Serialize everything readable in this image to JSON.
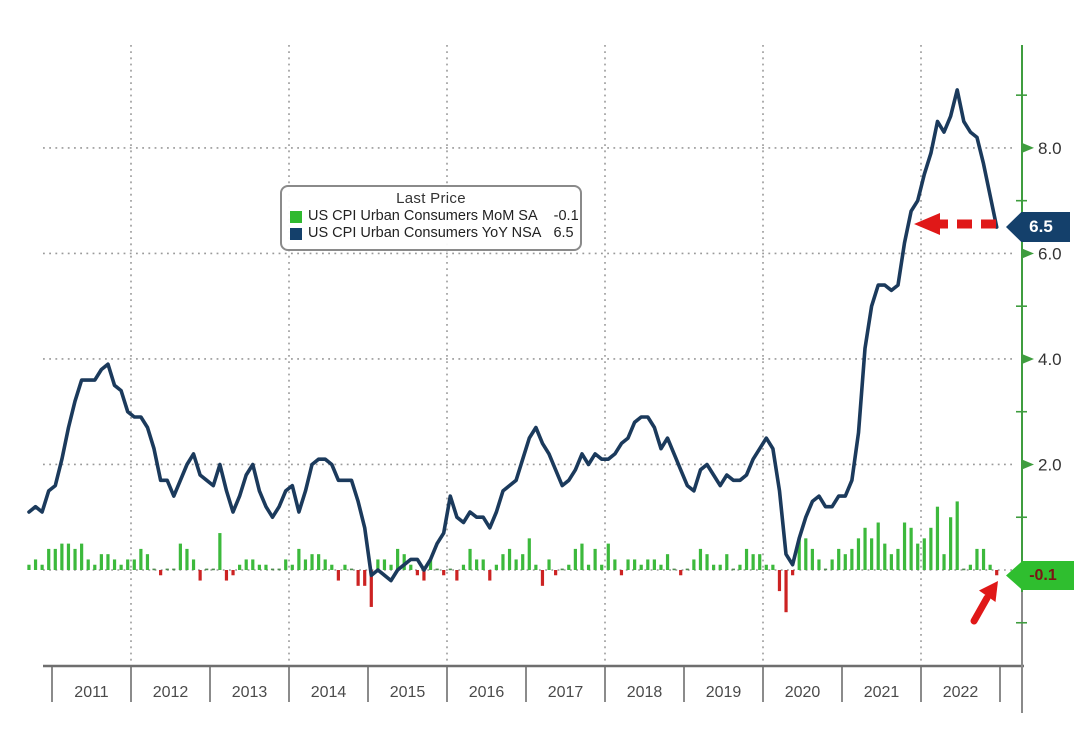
{
  "page": {
    "background": "#ffffff"
  },
  "chart_data": {
    "type": "line+bar",
    "description": "Bloomberg-style last price chart of US CPI: monthly MoM bars and YoY line",
    "frequency": "monthly",
    "x_start": "2010-09",
    "x_end": "2022-12",
    "x_axis": {
      "year_labels": [
        "2011",
        "2012",
        "2013",
        "2014",
        "2015",
        "2016",
        "2017",
        "2018",
        "2019",
        "2020",
        "2021",
        "2022"
      ],
      "label_color": "#4a4a4a",
      "axis_color": "#6e6e6e"
    },
    "y_axis": {
      "side": "right",
      "major_ticks": [
        {
          "label": "8.0",
          "value": 8.0
        },
        {
          "label": "6.0",
          "value": 6.0
        },
        {
          "label": "4.0",
          "value": 4.0
        },
        {
          "label": "2.0",
          "value": 2.0
        }
      ],
      "minor_tick_values": [
        9,
        7,
        5,
        3,
        1,
        -1
      ],
      "ylim": [
        -1.8,
        9.95
      ],
      "axis_color": "#3f9d3f",
      "axis_lower_color": "#8a8a8a",
      "label_color": "#333333"
    },
    "grid": {
      "dotted": true,
      "color": "#9a9a9a",
      "h_line_values": [
        8,
        6,
        4,
        2,
        0
      ],
      "v_line_years": [
        2012,
        2014,
        2016,
        2018,
        2020,
        2022
      ]
    },
    "legend": {
      "title": "Last Price",
      "entries": [
        {
          "label": "US CPI Urban Consumers MoM SA",
          "value": "-0.1",
          "swatch_color": "#2fb92f"
        },
        {
          "label": "US CPI Urban Consumers YoY NSA",
          "value": "6.5",
          "swatch_color": "#14406b"
        }
      ]
    },
    "series": [
      {
        "name": "US CPI Urban Consumers MoM SA",
        "type": "bar",
        "positive_color": "#3cb93c",
        "negative_color": "#cc2222",
        "zero_color": "#4d8c4d",
        "last": -0.1,
        "values": [
          0.1,
          0.2,
          0.1,
          0.4,
          0.4,
          0.5,
          0.5,
          0.4,
          0.5,
          0.2,
          0.1,
          0.3,
          0.3,
          0.2,
          0.1,
          0.2,
          0.2,
          0.4,
          0.3,
          0.0,
          -0.1,
          0.0,
          0.0,
          0.5,
          0.4,
          0.2,
          -0.2,
          0.0,
          0.0,
          0.7,
          -0.2,
          -0.1,
          0.1,
          0.2,
          0.2,
          0.1,
          0.1,
          0.0,
          0.0,
          0.2,
          0.1,
          0.4,
          0.2,
          0.3,
          0.3,
          0.2,
          0.1,
          -0.2,
          0.1,
          0.0,
          -0.3,
          -0.3,
          -0.7,
          0.2,
          0.2,
          0.1,
          0.4,
          0.3,
          0.1,
          -0.1,
          -0.2,
          0.2,
          0.0,
          -0.1,
          0.0,
          -0.2,
          0.1,
          0.4,
          0.2,
          0.2,
          -0.2,
          0.1,
          0.3,
          0.4,
          0.2,
          0.3,
          0.6,
          0.1,
          -0.3,
          0.2,
          -0.1,
          0.0,
          0.1,
          0.4,
          0.5,
          0.1,
          0.4,
          0.1,
          0.5,
          0.2,
          -0.1,
          0.2,
          0.2,
          0.1,
          0.2,
          0.2,
          0.1,
          0.3,
          0.0,
          -0.1,
          0.0,
          0.2,
          0.4,
          0.3,
          0.1,
          0.1,
          0.3,
          0.0,
          0.1,
          0.4,
          0.3,
          0.3,
          0.1,
          0.1,
          -0.4,
          -0.8,
          -0.1,
          0.6,
          0.6,
          0.4,
          0.2,
          0.0,
          0.2,
          0.4,
          0.3,
          0.4,
          0.6,
          0.8,
          0.6,
          0.9,
          0.5,
          0.3,
          0.4,
          0.9,
          0.8,
          0.5,
          0.6,
          0.8,
          1.2,
          0.3,
          1.0,
          1.3,
          0.0,
          0.1,
          0.4,
          0.4,
          0.1,
          -0.1
        ]
      },
      {
        "name": "US CPI Urban Consumers YoY NSA",
        "type": "line",
        "color": "#1b3a5c",
        "last": 6.5,
        "values": [
          1.1,
          1.2,
          1.1,
          1.5,
          1.6,
          2.1,
          2.7,
          3.2,
          3.6,
          3.6,
          3.6,
          3.8,
          3.9,
          3.5,
          3.4,
          3.0,
          2.9,
          2.9,
          2.7,
          2.3,
          1.7,
          1.7,
          1.4,
          1.7,
          2.0,
          2.2,
          1.8,
          1.7,
          1.6,
          2.0,
          1.5,
          1.1,
          1.4,
          1.8,
          2.0,
          1.5,
          1.2,
          1.0,
          1.2,
          1.5,
          1.6,
          1.1,
          1.5,
          2.0,
          2.1,
          2.1,
          2.0,
          1.7,
          1.7,
          1.7,
          1.3,
          0.8,
          -0.1,
          0.0,
          -0.1,
          -0.2,
          0.0,
          0.1,
          0.2,
          0.2,
          0.0,
          0.2,
          0.5,
          0.7,
          1.4,
          1.0,
          0.9,
          1.1,
          1.0,
          1.0,
          0.8,
          1.1,
          1.5,
          1.6,
          1.7,
          2.1,
          2.5,
          2.7,
          2.4,
          2.2,
          1.9,
          1.6,
          1.7,
          1.9,
          2.2,
          2.0,
          2.2,
          2.1,
          2.1,
          2.2,
          2.4,
          2.5,
          2.8,
          2.9,
          2.9,
          2.7,
          2.3,
          2.5,
          2.2,
          1.9,
          1.6,
          1.5,
          1.9,
          2.0,
          1.8,
          1.6,
          1.8,
          1.7,
          1.7,
          1.8,
          2.1,
          2.3,
          2.5,
          2.3,
          1.5,
          0.3,
          0.1,
          0.6,
          1.0,
          1.3,
          1.4,
          1.2,
          1.2,
          1.4,
          1.4,
          1.7,
          2.6,
          4.2,
          5.0,
          5.4,
          5.4,
          5.3,
          5.4,
          6.2,
          6.8,
          7.0,
          7.5,
          7.9,
          8.5,
          8.3,
          8.6,
          9.1,
          8.5,
          8.3,
          8.2,
          7.7,
          7.1,
          6.5
        ]
      }
    ],
    "badges": [
      {
        "id": "yoy",
        "label": "6.5",
        "y_value": 6.5,
        "bg": "#14406b",
        "fg": "#ffffff"
      },
      {
        "id": "mom",
        "label": "-0.1",
        "y_value": -0.1,
        "bg": "#2fbe2f",
        "fg": "#7c1414"
      }
    ],
    "annotations": [
      {
        "id": "yoy-arrow",
        "type": "dashed-arrow-left",
        "color": "#e01818",
        "points_at": "Dec 2022 YoY last price 6.5"
      },
      {
        "id": "mom-arrow",
        "type": "solid-arrow-up-right",
        "color": "#e01818",
        "points_at": "Dec 2022 MoM last price -0.1"
      }
    ]
  }
}
